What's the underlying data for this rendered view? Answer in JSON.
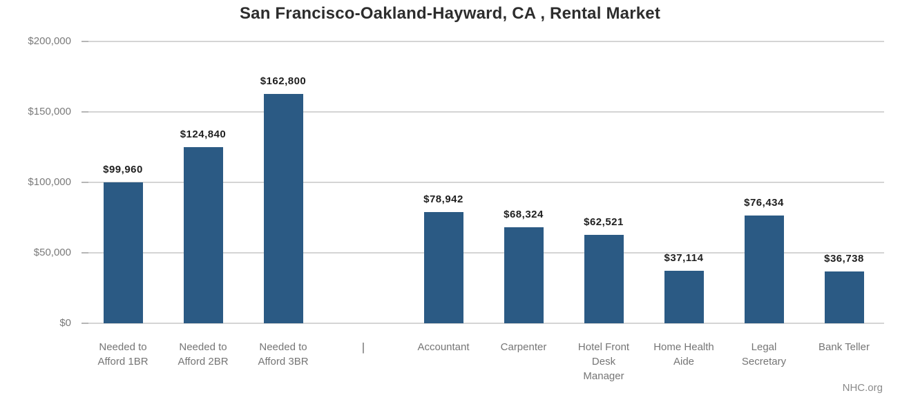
{
  "title": "San Francisco-Oakland-Hayward, CA , Rental Market",
  "source": "NHC.org",
  "colors": {
    "bar": "#2B5A84",
    "gridline": "#d4d4d4",
    "tick": "#b5b5b5",
    "title_text": "#2d2d2d",
    "value_label_text": "#1f1f1f",
    "axis_label_text": "#7a7a7a",
    "category_label_text": "#757575",
    "background": "#ffffff"
  },
  "chart_data": {
    "type": "bar",
    "title": "San Francisco-Oakland-Hayward, CA , Rental Market",
    "categories": [
      "Needed to Afford 1BR",
      "Needed to Afford 2BR",
      "Needed to Afford 3BR",
      "|",
      "Accountant",
      "Carpenter",
      "Hotel Front Desk Manager",
      "Home Health Aide",
      "Legal Secretary",
      "Bank Teller"
    ],
    "values": [
      99960,
      124840,
      162800,
      null,
      78942,
      68324,
      62521,
      37114,
      76434,
      36738
    ],
    "value_labels": [
      "$99,960",
      "$124,840",
      "$162,800",
      "",
      "$78,942",
      "$68,324",
      "$62,521",
      "$37,114",
      "$76,434",
      "$36,738"
    ],
    "xlabel": "",
    "ylabel": "",
    "ylim": [
      0,
      200000
    ],
    "yticks": [
      0,
      50000,
      100000,
      150000,
      200000
    ],
    "ytick_labels": [
      "$0",
      "$50,000",
      "$100,000",
      "$150,000",
      "$200,000"
    ],
    "grid": true,
    "legend": false
  }
}
